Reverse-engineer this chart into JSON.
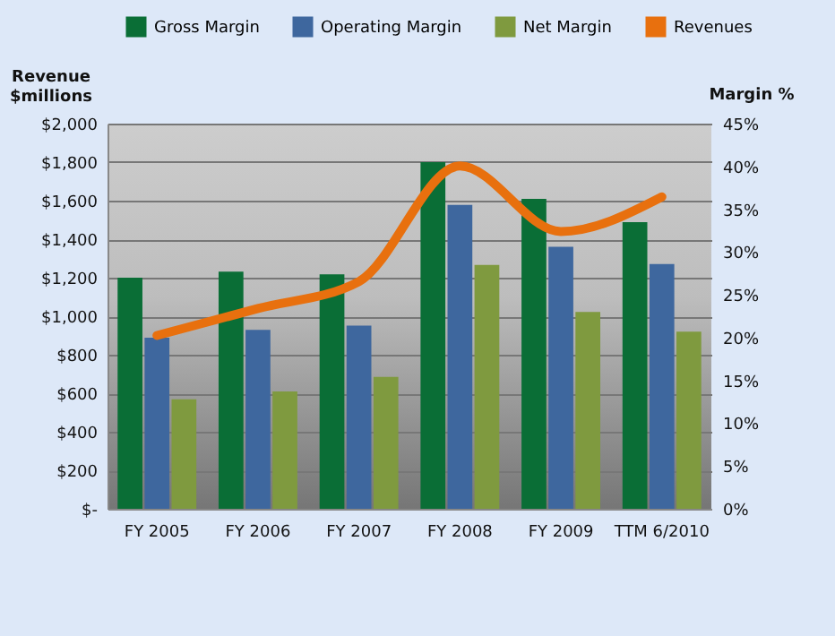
{
  "chart_data": {
    "type": "bar",
    "categories": [
      "FY 2005",
      "FY 2006",
      "FY 2007",
      "FY 2008",
      "FY 2009",
      "TTM 6/2010"
    ],
    "ylabel": "Revenue $millions",
    "y2label": "Margin %",
    "series": [
      {
        "name": "Gross Margin",
        "axis": "y2",
        "color": "#0a6e36",
        "values": [
          27,
          27.7,
          27.4,
          40.5,
          36.2,
          33.5
        ]
      },
      {
        "name": "Operating Margin",
        "axis": "y2",
        "color": "#3e679e",
        "values": [
          20,
          20.9,
          21.4,
          35.5,
          30.6,
          28.6
        ]
      },
      {
        "name": "Net Margin",
        "axis": "y2",
        "color": "#7f9a3f",
        "values": [
          12.8,
          13.7,
          15.4,
          28.5,
          23,
          20.7
        ]
      },
      {
        "name": "Revenues",
        "type": "line",
        "color": "#e8700e",
        "values": [
          900,
          1040,
          1180,
          1780,
          1440,
          1620
        ]
      }
    ],
    "ylim": [
      0,
      2000
    ],
    "yticks": [
      {
        "value": 0,
        "label": "$-"
      },
      {
        "value": 200,
        "label": "$200"
      },
      {
        "value": 400,
        "label": "$400"
      },
      {
        "value": 600,
        "label": "$600"
      },
      {
        "value": 800,
        "label": "$800"
      },
      {
        "value": 1000,
        "label": "$1,000"
      },
      {
        "value": 1200,
        "label": "$1,200"
      },
      {
        "value": 1400,
        "label": "$1,400"
      },
      {
        "value": 1600,
        "label": "$1,600"
      },
      {
        "value": 1800,
        "label": "$1,800"
      },
      {
        "value": 2000,
        "label": "$2,000"
      }
    ],
    "y2lim": [
      0,
      45
    ],
    "y2ticks": [
      {
        "value": 0,
        "label": "0%"
      },
      {
        "value": 5,
        "label": "5%"
      },
      {
        "value": 10,
        "label": "10%"
      },
      {
        "value": 15,
        "label": "15%"
      },
      {
        "value": 20,
        "label": "20%"
      },
      {
        "value": 25,
        "label": "25%"
      },
      {
        "value": 30,
        "label": "30%"
      },
      {
        "value": 35,
        "label": "35%"
      },
      {
        "value": 40,
        "label": "40%"
      },
      {
        "value": 45,
        "label": "45%"
      }
    ],
    "grid": "y",
    "legend": "top"
  }
}
